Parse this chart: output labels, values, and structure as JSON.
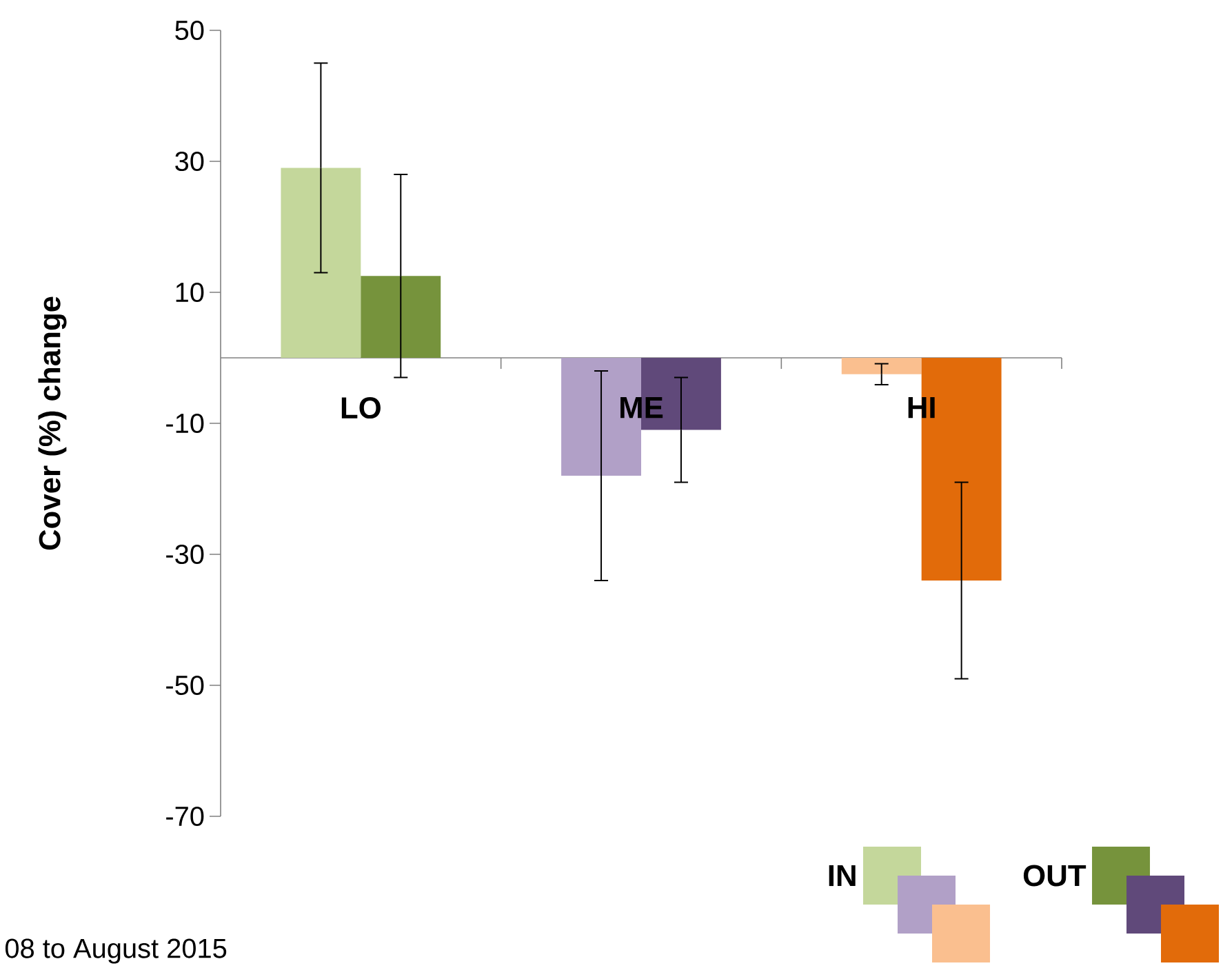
{
  "chart_data": {
    "type": "bar",
    "ylabel": "Cover (%) change",
    "categories": [
      "LO",
      "ME",
      "HI"
    ],
    "series": [
      {
        "name": "IN",
        "colors": [
          "#c4d79b",
          "#b1a0c7",
          "#fabf8f"
        ],
        "values": [
          29,
          -18,
          -2.5
        ],
        "errors": [
          16,
          16,
          1.6
        ]
      },
      {
        "name": "OUT",
        "colors": [
          "#76933c",
          "#60497a",
          "#e26b0a"
        ],
        "values": [
          12.5,
          -11,
          -34
        ],
        "errors": [
          15.5,
          8,
          15
        ]
      }
    ],
    "ylim": [
      -70,
      50
    ],
    "yticks": [
      -70,
      -50,
      -30,
      -10,
      10,
      30,
      50
    ],
    "grid": false,
    "legend": "bottom right",
    "annotations": [
      "08 to August 2015"
    ]
  }
}
